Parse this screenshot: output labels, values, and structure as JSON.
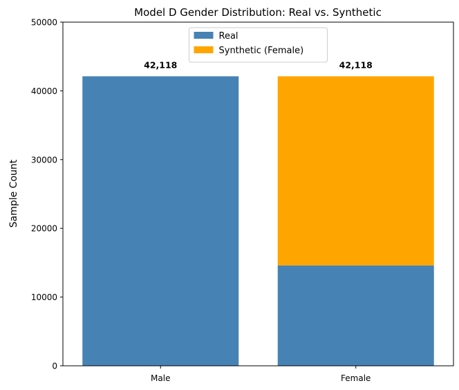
{
  "chart_data": {
    "type": "bar",
    "stacked": true,
    "title": "Model D Gender Distribution: Real vs. Synthetic",
    "xlabel": "",
    "ylabel": "Sample Count",
    "categories": [
      "Male",
      "Female"
    ],
    "ylim": [
      0,
      50000
    ],
    "yticks": [
      "0",
      "10000",
      "20000",
      "30000",
      "40000",
      "50000"
    ],
    "yticks_values": [
      0,
      10000,
      20000,
      30000,
      40000,
      50000
    ],
    "series": [
      {
        "name": "Real",
        "color": "#4682b4",
        "values": [
          42118,
          14600
        ]
      },
      {
        "name": "Synthetic (Female)",
        "color": "#ffa500",
        "values": [
          0,
          27518
        ]
      }
    ],
    "totals": [
      42118,
      42118
    ],
    "total_labels": [
      "42,118",
      "42,118"
    ],
    "legend_position": "upper center",
    "grid": false
  }
}
